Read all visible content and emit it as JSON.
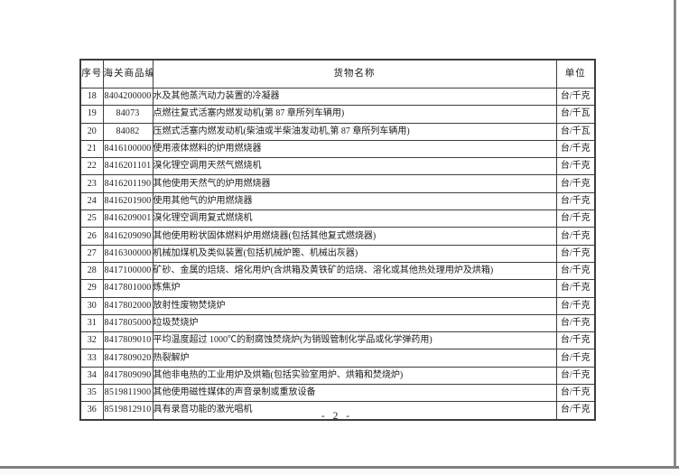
{
  "page": {
    "footer_page_number": "- 2 -"
  },
  "table": {
    "headers": [
      "序号",
      "海关商品编号",
      "货物名称",
      "单位"
    ],
    "rows": [
      {
        "no": "18",
        "code": "8404200000",
        "name": "水及其他蒸汽动力装置的冷凝器",
        "unit": "台/千克"
      },
      {
        "no": "19",
        "code": "84073",
        "name": "点燃往复式活塞内燃发动机(第 87 章所列车辆用)",
        "unit": "台/千瓦"
      },
      {
        "no": "20",
        "code": "84082",
        "name": "压燃式活塞内燃发动机(柴油或半柴油发动机,第 87 章所列车辆用)",
        "unit": "台/千瓦"
      },
      {
        "no": "21",
        "code": "8416100000",
        "name": "使用液体燃料的炉用燃烧器",
        "unit": "台/千克"
      },
      {
        "no": "22",
        "code": "8416201101",
        "name": "溴化锂空调用天然气燃烧机",
        "unit": "台/千克"
      },
      {
        "no": "23",
        "code": "8416201190",
        "name": "其他使用天然气的炉用燃烧器",
        "unit": "台/千克"
      },
      {
        "no": "24",
        "code": "8416201900",
        "name": "使用其他气的炉用燃烧器",
        "unit": "台/千克"
      },
      {
        "no": "25",
        "code": "8416209001",
        "name": "溴化锂空调用复式燃烧机",
        "unit": "台/千克"
      },
      {
        "no": "26",
        "code": "8416209090",
        "name": "其他使用粉状固体燃料炉用燃烧器(包括其他复式燃烧器)",
        "unit": "台/千克"
      },
      {
        "no": "27",
        "code": "8416300000",
        "name": "机械加煤机及类似装置(包括机械炉篦、机械出灰器)",
        "unit": "台/千克"
      },
      {
        "no": "28",
        "code": "8417100000",
        "name": "矿砂、金属的焙烧、熔化用炉(含烘箱及黄铁矿的焙烧、溶化或其他热处理用炉及烘箱)",
        "unit": "台/千克"
      },
      {
        "no": "29",
        "code": "8417801000",
        "name": "炼焦炉",
        "unit": "台/千克"
      },
      {
        "no": "30",
        "code": "8417802000",
        "name": "放射性废物焚烧炉",
        "unit": "台/千克"
      },
      {
        "no": "31",
        "code": "8417805000",
        "name": "垃圾焚烧炉",
        "unit": "台/千克"
      },
      {
        "no": "32",
        "code": "8417809010",
        "name": "平均温度超过 1000℃的耐腐蚀焚烧炉(为销毁管制化学品或化学弹药用)",
        "unit": "台/千克"
      },
      {
        "no": "33",
        "code": "8417809020",
        "name": "热裂解炉",
        "unit": "台/千克"
      },
      {
        "no": "34",
        "code": "8417809090",
        "name": "其他非电热的工业用炉及烘箱(包括实验室用炉、烘箱和焚烧炉)",
        "unit": "台/千克"
      },
      {
        "no": "35",
        "code": "8519811900",
        "name": "其他使用磁性媒体的声音录制或重放设备",
        "unit": "台/千克"
      },
      {
        "no": "36",
        "code": "8519812910",
        "name": "具有录音功能的激光唱机",
        "unit": "台/千克"
      }
    ]
  },
  "colors": {
    "table_border": "#3e3e3e",
    "text": "#1b1b1b",
    "scan_edge": "#8a8a8a",
    "page_background": "#ffffff"
  }
}
